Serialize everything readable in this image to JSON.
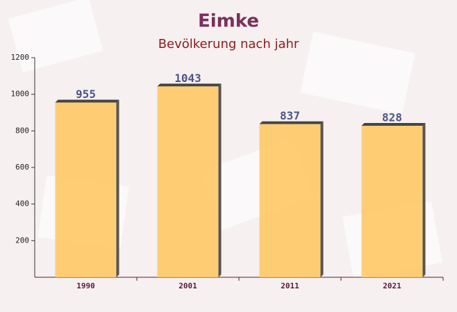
{
  "chart_data": {
    "type": "bar",
    "title": "Eimke",
    "subtitle": "Bevölkerung nach jahr",
    "categories": [
      "1990",
      "2001",
      "2011",
      "2021"
    ],
    "values": [
      955,
      1043,
      837,
      828
    ],
    "color": "#ffc965",
    "ylim": [
      0,
      1200
    ],
    "yticks": [
      200,
      400,
      600,
      800,
      1000,
      1200
    ],
    "grid": false
  }
}
